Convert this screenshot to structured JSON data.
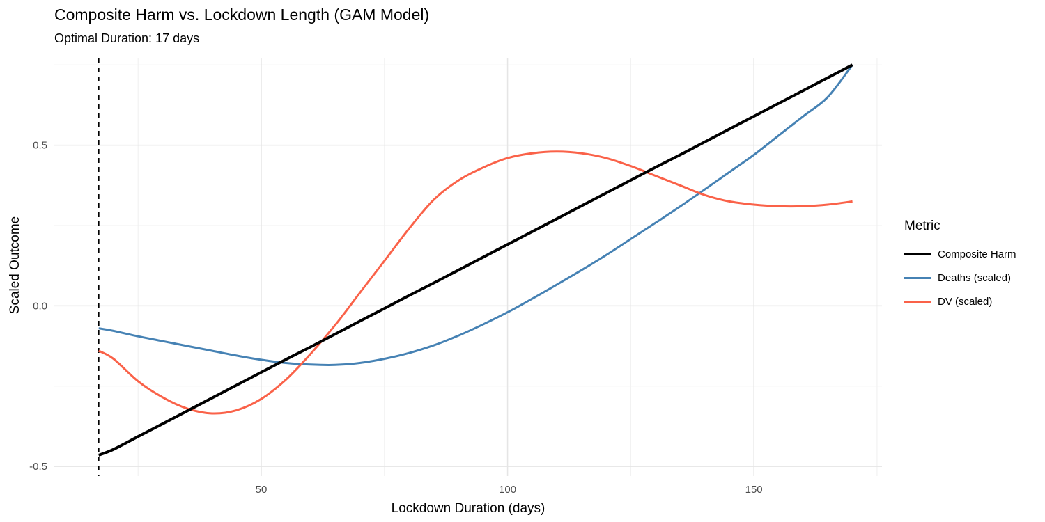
{
  "chart_data": {
    "type": "line",
    "title": "Composite Harm vs. Lockdown Length (GAM Model)",
    "subtitle": "Optimal Duration: 17 days",
    "xlabel": "Lockdown Duration (days)",
    "ylabel": "Scaled Outcome",
    "xlim": [
      8,
      176
    ],
    "ylim": [
      -0.53,
      0.77
    ],
    "x_ticks": [
      50,
      100,
      150
    ],
    "x_tick_labels": [
      "50",
      "100",
      "150"
    ],
    "y_ticks": [
      -0.5,
      0.0,
      0.5
    ],
    "y_tick_labels": [
      "-0.5",
      "0.0",
      "0.5"
    ],
    "grid": true,
    "legend_title": "Metric",
    "legend_position": "right",
    "vline": {
      "x": 17,
      "style": "dashed",
      "color": "#000000"
    },
    "x": [
      17,
      20,
      25,
      30,
      35,
      40,
      45,
      50,
      55,
      60,
      65,
      70,
      75,
      80,
      85,
      90,
      95,
      100,
      105,
      110,
      115,
      120,
      125,
      130,
      135,
      140,
      145,
      150,
      155,
      160,
      165,
      170
    ],
    "series": [
      {
        "name": "Composite Harm",
        "color": "#000000",
        "width": 4,
        "values": [
          -0.465,
          -0.447,
          -0.407,
          -0.367,
          -0.327,
          -0.287,
          -0.247,
          -0.207,
          -0.167,
          -0.128,
          -0.088,
          -0.048,
          -0.008,
          0.032,
          0.071,
          0.111,
          0.151,
          0.191,
          0.231,
          0.271,
          0.311,
          0.351,
          0.391,
          0.431,
          0.47,
          0.51,
          0.55,
          0.59,
          0.63,
          0.67,
          0.71,
          0.75
        ]
      },
      {
        "name": "Deaths (scaled)",
        "color": "#4682B4",
        "width": 3,
        "values": [
          -0.07,
          -0.078,
          -0.095,
          -0.11,
          -0.125,
          -0.14,
          -0.155,
          -0.168,
          -0.178,
          -0.183,
          -0.184,
          -0.178,
          -0.165,
          -0.147,
          -0.123,
          -0.093,
          -0.058,
          -0.02,
          0.022,
          0.066,
          0.111,
          0.158,
          0.208,
          0.258,
          0.309,
          0.362,
          0.416,
          0.47,
          0.53,
          0.59,
          0.65,
          0.75
        ]
      },
      {
        "name": "DV (scaled)",
        "color": "#FA6249",
        "width": 3,
        "values": [
          -0.14,
          -0.165,
          -0.235,
          -0.285,
          -0.32,
          -0.335,
          -0.325,
          -0.29,
          -0.23,
          -0.15,
          -0.06,
          0.04,
          0.14,
          0.24,
          0.33,
          0.39,
          0.43,
          0.46,
          0.475,
          0.48,
          0.475,
          0.46,
          0.435,
          0.405,
          0.375,
          0.345,
          0.325,
          0.315,
          0.31,
          0.31,
          0.315,
          0.325
        ]
      }
    ]
  }
}
